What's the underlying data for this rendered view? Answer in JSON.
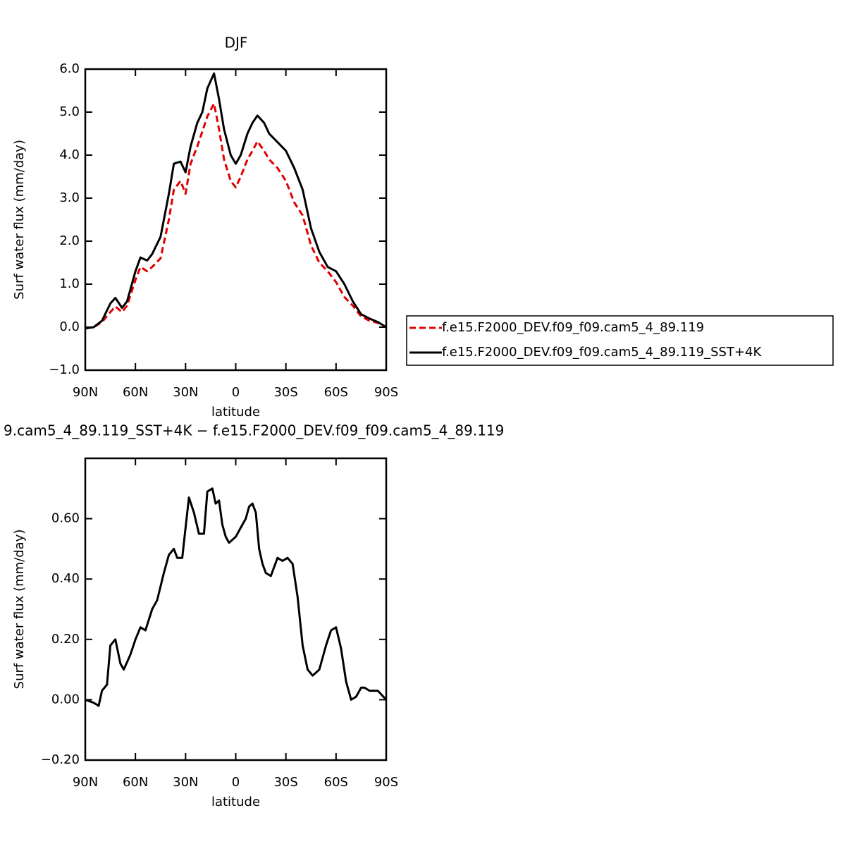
{
  "chart_data": [
    {
      "type": "line",
      "title": "DJF",
      "x_label": "latitude",
      "y_label": "Surf water flux (mm/day)",
      "x": [
        90,
        85,
        80,
        75,
        72,
        68,
        65,
        60,
        57,
        53,
        50,
        45,
        40,
        37,
        33,
        30,
        27,
        23,
        20,
        17,
        13,
        10,
        7,
        3,
        0,
        -3,
        -7,
        -10,
        -13,
        -17,
        -20,
        -25,
        -30,
        -35,
        -40,
        -45,
        -50,
        -55,
        -60,
        -65,
        -70,
        -75,
        -80,
        -85,
        -90
      ],
      "series": [
        {
          "name": "f.e15.F2000_DEV.f09_f09.cam5_4_89.119",
          "color": "#e00000",
          "dash": true,
          "values": [
            -0.03,
            0.0,
            0.12,
            0.35,
            0.48,
            0.35,
            0.5,
            1.1,
            1.4,
            1.3,
            1.4,
            1.6,
            2.5,
            3.2,
            3.4,
            3.1,
            3.8,
            4.2,
            4.55,
            4.9,
            5.2,
            4.6,
            3.9,
            3.4,
            3.25,
            3.5,
            3.9,
            4.1,
            4.32,
            4.1,
            3.9,
            3.7,
            3.4,
            2.9,
            2.6,
            1.9,
            1.5,
            1.3,
            1.05,
            0.7,
            0.5,
            0.25,
            0.15,
            0.1,
            0.0
          ]
        },
        {
          "name": "f.e15.F2000_DEV.f09_f09.cam5_4_89.119_SST+4K",
          "color": "#000000",
          "dash": false,
          "values": [
            -0.03,
            0.0,
            0.15,
            0.55,
            0.68,
            0.45,
            0.6,
            1.3,
            1.62,
            1.55,
            1.7,
            2.1,
            3.1,
            3.8,
            3.85,
            3.6,
            4.2,
            4.75,
            5.0,
            5.55,
            5.9,
            5.3,
            4.6,
            4.0,
            3.8,
            4.0,
            4.5,
            4.75,
            4.92,
            4.75,
            4.5,
            4.3,
            4.1,
            3.7,
            3.2,
            2.3,
            1.75,
            1.4,
            1.3,
            1.0,
            0.6,
            0.3,
            0.2,
            0.12,
            0.0
          ]
        }
      ],
      "xlim": [
        90,
        -90
      ],
      "xticks": [
        {
          "value": 90,
          "label": "90N"
        },
        {
          "value": 60,
          "label": "60N"
        },
        {
          "value": 30,
          "label": "30N"
        },
        0,
        {
          "value": -30,
          "label": "30S"
        },
        {
          "value": -60,
          "label": "60S"
        },
        {
          "value": -90,
          "label": "90S"
        }
      ],
      "ylim": [
        -1,
        6
      ],
      "yticks": [
        {
          "value": -1,
          "label": "−1.0"
        },
        {
          "value": 0,
          "label": "0.0"
        },
        {
          "value": 1,
          "label": "1.0"
        },
        {
          "value": 2,
          "label": "2.0"
        },
        {
          "value": 3,
          "label": "3.0"
        },
        {
          "value": 4,
          "label": "4.0"
        },
        {
          "value": 5,
          "label": "5.0"
        },
        {
          "value": 6,
          "label": "6.0"
        }
      ],
      "legend": "right"
    },
    {
      "type": "line",
      "title": "9.cam5_4_89.119_SST+4K − f.e15.F2000_DEV.f09_f09.cam5_4_89.119",
      "x_label": "latitude",
      "y_label": "Surf water flux (mm/day)",
      "x": [
        90,
        85,
        82,
        80,
        77,
        75,
        72,
        69,
        67,
        63,
        60,
        57,
        54,
        50,
        47,
        43,
        40,
        37,
        35,
        32,
        30,
        28,
        25,
        22,
        19,
        17,
        14,
        12,
        10,
        8,
        6,
        4,
        0,
        -3,
        -6,
        -8,
        -10,
        -12,
        -14,
        -16,
        -18,
        -21,
        -25,
        -28,
        -31,
        -34,
        -37,
        -40,
        -43,
        -46,
        -50,
        -54,
        -57,
        -60,
        -63,
        -66,
        -69,
        -72,
        -75,
        -77,
        -80,
        -85,
        -90
      ],
      "series": [
        {
          "color": "#000000",
          "dash": false,
          "values": [
            0.0,
            -0.01,
            -0.02,
            0.03,
            0.05,
            0.18,
            0.2,
            0.12,
            0.1,
            0.15,
            0.2,
            0.24,
            0.23,
            0.3,
            0.33,
            0.42,
            0.48,
            0.5,
            0.47,
            0.47,
            0.57,
            0.67,
            0.62,
            0.55,
            0.55,
            0.69,
            0.7,
            0.65,
            0.66,
            0.58,
            0.54,
            0.52,
            0.54,
            0.57,
            0.6,
            0.64,
            0.65,
            0.62,
            0.5,
            0.45,
            0.42,
            0.41,
            0.47,
            0.46,
            0.47,
            0.45,
            0.34,
            0.18,
            0.1,
            0.08,
            0.1,
            0.18,
            0.23,
            0.24,
            0.17,
            0.06,
            0.0,
            0.01,
            0.04,
            0.04,
            0.03,
            0.03,
            0.0
          ]
        }
      ],
      "xlim": [
        90,
        -90
      ],
      "xticks": [
        {
          "value": 90,
          "label": "90N"
        },
        {
          "value": 60,
          "label": "60N"
        },
        {
          "value": 30,
          "label": "30N"
        },
        0,
        {
          "value": -30,
          "label": "30S"
        },
        {
          "value": -60,
          "label": "60S"
        },
        {
          "value": -90,
          "label": "90S"
        }
      ],
      "ylim": [
        -0.2,
        0.8
      ],
      "yticks": [
        {
          "value": -0.2,
          "label": "−0.20"
        },
        {
          "value": 0,
          "label": "0.00"
        },
        {
          "value": 0.2,
          "label": "0.20"
        },
        {
          "value": 0.4,
          "label": "0.40"
        },
        {
          "value": 0.6,
          "label": "0.60"
        }
      ]
    }
  ]
}
